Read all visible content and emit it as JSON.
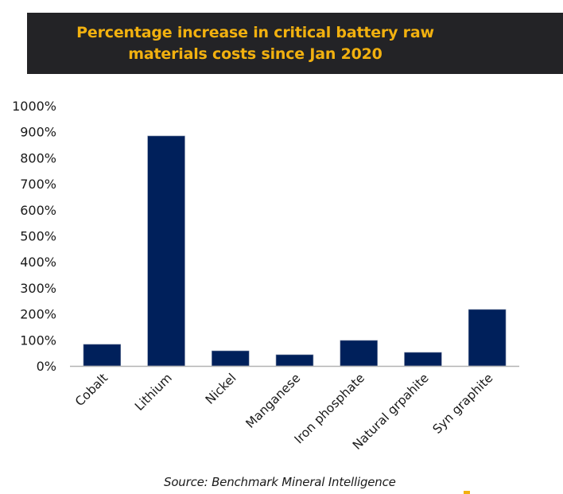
{
  "chart_data": {
    "type": "bar",
    "title": "Percentage increase in critical battery raw materials costs since Jan 2020",
    "title_lines": [
      "Percentage increase in critical battery raw",
      "materials costs since Jan 2020"
    ],
    "categories": [
      "Cobalt",
      "Lithium",
      "Nickel",
      "Manganese",
      "Iron phosphate",
      "Natural grpahite",
      "Syn graphite"
    ],
    "values": [
      83,
      884,
      58,
      43,
      98,
      52,
      217
    ],
    "unit": "%",
    "xlabel": "",
    "ylabel": "",
    "ylim": [
      0,
      1000
    ],
    "yticks": [
      0,
      100,
      200,
      300,
      400,
      500,
      600,
      700,
      800,
      900,
      1000
    ],
    "ytick_labels": [
      "0%",
      "100%",
      "200%",
      "300%",
      "400%",
      "500%",
      "600%",
      "700%",
      "800%",
      "900%",
      "1000%"
    ],
    "grid": false,
    "legend": "none",
    "bar_color": "#00205b",
    "title_color": "#f2b10f",
    "banner_color": "#232326",
    "source": "Source: Benchmark Mineral Intelligence"
  }
}
